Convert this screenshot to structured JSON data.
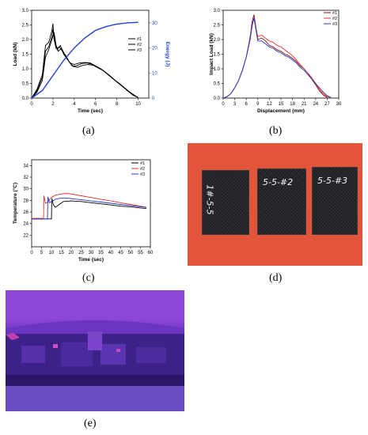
{
  "captions": {
    "a": "(a)",
    "b": "(b)",
    "c": "(c)",
    "d": "(d)",
    "e": "(e)"
  },
  "chart_data": [
    {
      "id": "a",
      "type": "line",
      "xlabel": "Time (sec)",
      "ylabel": "Load (kN)",
      "y2label": "Energy (J)",
      "xlim": [
        0,
        11
      ],
      "ylim": [
        0,
        3.0
      ],
      "y2lim": [
        0,
        35
      ],
      "xticks": [
        "0",
        "2",
        "4",
        "6",
        "8",
        "10"
      ],
      "yticks": [
        "0.0",
        "0.5",
        "1.0",
        "1.5",
        "2.0",
        "2.5",
        "3.0"
      ],
      "y2ticks": [
        "0",
        "10",
        "20",
        "30"
      ],
      "legend": [
        "#1",
        "#2",
        "#3"
      ],
      "legend_position": "top-right",
      "series": [
        {
          "name": "#1",
          "axis": "left",
          "color": "#000000",
          "x": [
            0,
            0.5,
            1,
            1.3,
            1.6,
            1.9,
            2.0,
            2.1,
            2.3,
            2.6,
            2.9,
            3.2,
            3.6,
            4.0,
            4.5,
            5.0,
            5.5,
            6.0,
            6.5,
            7.0,
            7.5,
            8.0,
            8.5,
            9.0,
            9.5,
            10.0
          ],
          "y": [
            0,
            0.3,
            0.8,
            1.8,
            1.9,
            2.3,
            2.55,
            2.0,
            1.7,
            1.75,
            1.6,
            1.45,
            1.2,
            1.15,
            1.2,
            1.22,
            1.2,
            1.1,
            1.0,
            0.85,
            0.7,
            0.55,
            0.4,
            0.25,
            0.1,
            0.02
          ]
        },
        {
          "name": "#2",
          "axis": "left",
          "color": "#000000",
          "x": [
            0,
            0.5,
            1,
            1.3,
            1.6,
            1.9,
            2.0,
            2.2,
            2.4,
            2.7,
            3.0,
            3.4,
            3.8,
            4.2,
            4.7,
            5.2,
            5.7,
            6.2,
            6.7,
            7.2,
            7.7,
            8.2,
            8.7,
            9.2,
            9.7,
            10.0
          ],
          "y": [
            0,
            0.25,
            0.7,
            1.6,
            1.75,
            2.1,
            2.35,
            1.9,
            1.65,
            1.8,
            1.5,
            1.3,
            1.1,
            1.1,
            1.18,
            1.2,
            1.15,
            1.05,
            0.95,
            0.8,
            0.65,
            0.5,
            0.35,
            0.2,
            0.08,
            0.02
          ]
        },
        {
          "name": "#3",
          "axis": "left",
          "color": "#000000",
          "x": [
            0,
            0.5,
            1,
            1.3,
            1.6,
            1.9,
            2.1,
            2.3,
            2.5,
            2.8,
            3.1,
            3.5,
            3.9,
            4.3,
            4.8,
            5.3,
            5.8,
            6.3,
            6.8,
            7.3,
            7.8,
            8.3,
            8.8,
            9.3,
            9.8,
            10.0
          ],
          "y": [
            0,
            0.2,
            0.6,
            1.4,
            1.65,
            2.0,
            2.25,
            1.8,
            1.6,
            1.7,
            1.5,
            1.25,
            1.08,
            1.05,
            1.12,
            1.15,
            1.12,
            1.02,
            0.92,
            0.78,
            0.62,
            0.48,
            0.33,
            0.18,
            0.06,
            0.02
          ]
        },
        {
          "name": "Energy",
          "axis": "right",
          "color": "#1f3fd6",
          "x": [
            0,
            1,
            2,
            3,
            4,
            5,
            6,
            7,
            8,
            9,
            10
          ],
          "y": [
            0,
            3,
            9,
            15,
            20,
            24,
            27,
            28.5,
            29.5,
            30,
            30.2
          ]
        }
      ]
    },
    {
      "id": "b",
      "type": "line",
      "xlabel": "Displacement (mm)",
      "ylabel": "Impact Load (kN)",
      "xlim": [
        0,
        30
      ],
      "ylim": [
        0,
        3.0
      ],
      "xticks": [
        "0",
        "3",
        "6",
        "9",
        "12",
        "15",
        "18",
        "21",
        "24",
        "27",
        "30"
      ],
      "yticks": [
        "0.0",
        "0.5",
        "1.0",
        "1.5",
        "2.0",
        "2.5",
        "3.0"
      ],
      "legend": [
        "#1",
        "#2",
        "#3"
      ],
      "legend_position": "top-right",
      "series": [
        {
          "name": "#1",
          "color": "#8b1010",
          "x": [
            0,
            1,
            2,
            3,
            4,
            5,
            6,
            7,
            7.5,
            8,
            9,
            10,
            11,
            12,
            13,
            14,
            15,
            16,
            17,
            18,
            19,
            20,
            21,
            22,
            23,
            24,
            25,
            26,
            27
          ],
          "y": [
            0,
            0.05,
            0.15,
            0.35,
            0.6,
            0.95,
            1.4,
            2.1,
            2.6,
            2.85,
            2.0,
            2.05,
            1.95,
            1.8,
            1.75,
            1.65,
            1.6,
            1.5,
            1.45,
            1.35,
            1.25,
            1.1,
            1.0,
            0.85,
            0.65,
            0.45,
            0.25,
            0.1,
            0.02
          ]
        },
        {
          "name": "#2",
          "color": "#e03030",
          "x": [
            0,
            1,
            2,
            3,
            4,
            5,
            6,
            7,
            7.5,
            8,
            9,
            10,
            11,
            12,
            13,
            14,
            15,
            16,
            17,
            18,
            19,
            20,
            21,
            22,
            23,
            24,
            25,
            26,
            27,
            28
          ],
          "y": [
            0,
            0.05,
            0.15,
            0.35,
            0.6,
            0.95,
            1.4,
            2.05,
            2.5,
            2.7,
            2.1,
            2.15,
            2.05,
            1.95,
            1.9,
            1.8,
            1.75,
            1.65,
            1.55,
            1.45,
            1.3,
            1.15,
            1.0,
            0.85,
            0.7,
            0.5,
            0.3,
            0.15,
            0.05,
            0.02
          ]
        },
        {
          "name": "#3",
          "color": "#2038c8",
          "x": [
            0,
            1,
            2,
            3,
            4,
            5,
            6,
            7,
            7.5,
            8,
            9,
            10,
            11,
            12,
            13,
            14,
            15,
            16,
            17,
            18,
            19,
            20,
            21,
            22,
            23,
            24,
            25,
            26,
            27,
            28
          ],
          "y": [
            0,
            0.05,
            0.15,
            0.35,
            0.6,
            0.95,
            1.4,
            2.0,
            2.45,
            2.75,
            1.95,
            1.95,
            1.85,
            1.75,
            1.7,
            1.6,
            1.55,
            1.45,
            1.4,
            1.3,
            1.2,
            1.05,
            0.95,
            0.8,
            0.65,
            0.5,
            0.35,
            0.2,
            0.08,
            0.02
          ]
        }
      ]
    },
    {
      "id": "c",
      "type": "line",
      "xlabel": "Time (sec)",
      "ylabel": "Temperature (°C)",
      "xlim": [
        0,
        60
      ],
      "ylim": [
        20,
        35
      ],
      "xticks": [
        "0",
        "5",
        "10",
        "15",
        "20",
        "25",
        "30",
        "35",
        "40",
        "45",
        "50",
        "55",
        "60"
      ],
      "yticks": [
        "22",
        "24",
        "26",
        "28",
        "30",
        "32",
        "34"
      ],
      "legend": [
        "#1",
        "#2",
        "#3"
      ],
      "legend_position": "top-right",
      "series": [
        {
          "name": "#1",
          "color": "#000000",
          "x": [
            0,
            8,
            10,
            10.2,
            11,
            12,
            14,
            16,
            20,
            25,
            30,
            35,
            40,
            45,
            50,
            55,
            58
          ],
          "y": [
            24.8,
            24.8,
            24.8,
            28.3,
            27.2,
            26.8,
            27.3,
            27.8,
            27.9,
            27.8,
            27.6,
            27.4,
            27.2,
            27.0,
            26.9,
            26.7,
            26.6
          ]
        },
        {
          "name": "#2",
          "color": "#e03030",
          "x": [
            0,
            6,
            6.2,
            7,
            8,
            10,
            12,
            15,
            18,
            20,
            25,
            30,
            35,
            40,
            45,
            50,
            55,
            58
          ],
          "y": [
            24.9,
            24.9,
            28.8,
            27.5,
            27.7,
            28.5,
            28.9,
            29.1,
            29.2,
            29.1,
            28.8,
            28.5,
            28.2,
            27.9,
            27.6,
            27.3,
            27.0,
            26.8
          ]
        },
        {
          "name": "#3",
          "color": "#2038c8",
          "x": [
            0,
            8,
            8.2,
            9,
            10,
            12,
            15,
            18,
            20,
            25,
            30,
            35,
            40,
            45,
            50,
            55,
            58
          ],
          "y": [
            24.8,
            24.8,
            28.6,
            27.6,
            27.8,
            28.2,
            28.4,
            28.4,
            28.3,
            28.1,
            27.9,
            27.7,
            27.5,
            27.3,
            27.1,
            26.9,
            26.8
          ]
        }
      ]
    }
  ],
  "photo": {
    "plates": [
      {
        "label": "1#-5-5"
      },
      {
        "label": "5-5-#2"
      },
      {
        "label": "5-5-#3"
      }
    ]
  },
  "thermal": {}
}
